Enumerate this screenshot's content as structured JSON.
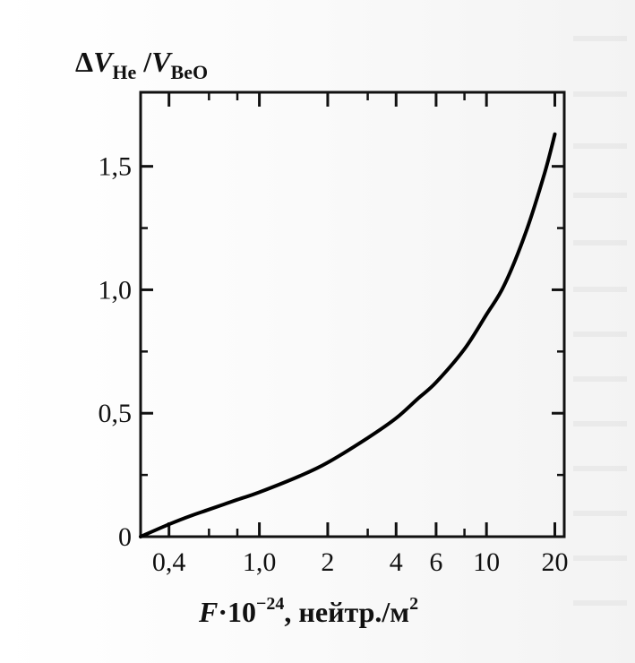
{
  "chart_data": {
    "type": "line",
    "ylabel": {
      "prefix": "Δ",
      "v1": "V",
      "sub1": "He",
      "slash": " /",
      "v2": "V",
      "sub2": "BeO"
    },
    "xlabel": {
      "F": "F",
      "dot": "·10",
      "exp": "−24",
      "unit": ", нейтр./м",
      "unit_exp": "2"
    },
    "x_scale": "log",
    "xlim": [
      0.3,
      22
    ],
    "ylim": [
      0,
      1.8
    ],
    "x_ticks": [
      {
        "value": 0.4,
        "label": "0,4"
      },
      {
        "value": 1.0,
        "label": "1,0"
      },
      {
        "value": 2,
        "label": "2"
      },
      {
        "value": 4,
        "label": "4"
      },
      {
        "value": 6,
        "label": "6"
      },
      {
        "value": 10,
        "label": "10"
      },
      {
        "value": 20,
        "label": "20"
      }
    ],
    "x_minor_ticks": [
      0.6,
      0.8,
      3,
      8
    ],
    "y_ticks": [
      {
        "value": 0,
        "label": "0"
      },
      {
        "value": 0.5,
        "label": "0,5"
      },
      {
        "value": 1.0,
        "label": "1,0"
      },
      {
        "value": 1.5,
        "label": "1,5"
      }
    ],
    "series": [
      {
        "color": "#000000",
        "x": [
          0.3,
          0.4,
          0.5,
          0.6,
          0.8,
          1.0,
          1.5,
          2,
          3,
          4,
          5,
          6,
          8,
          10,
          12,
          15,
          18,
          20
        ],
        "y": [
          0.0,
          0.05,
          0.085,
          0.11,
          0.15,
          0.18,
          0.245,
          0.3,
          0.4,
          0.48,
          0.56,
          0.625,
          0.76,
          0.9,
          1.02,
          1.24,
          1.47,
          1.63
        ]
      }
    ]
  }
}
